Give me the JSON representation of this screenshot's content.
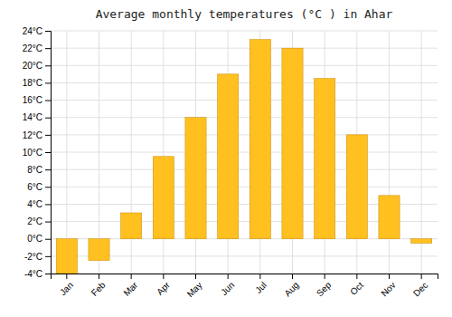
{
  "chart_data": {
    "type": "bar",
    "title": "Average monthly temperatures (°C ) in Ahar",
    "categories": [
      "Jan",
      "Feb",
      "Mar",
      "Apr",
      "May",
      "Jun",
      "Jul",
      "Aug",
      "Sep",
      "Oct",
      "Nov",
      "Dec"
    ],
    "values": [
      -4,
      -2.5,
      3,
      9.5,
      14,
      19,
      23,
      22,
      18.5,
      12,
      5,
      -0.5
    ],
    "color": "#FFC020",
    "ylim": [
      -4,
      24
    ],
    "yticks": [
      {
        "value": -4,
        "label": "-4°C"
      },
      {
        "value": -2,
        "label": "-2°C"
      },
      {
        "value": 0,
        "label": "0°C"
      },
      {
        "value": 2,
        "label": "2°C"
      },
      {
        "value": 4,
        "label": "4°C"
      },
      {
        "value": 6,
        "label": "6°C"
      },
      {
        "value": 8,
        "label": "8°C"
      },
      {
        "value": 10,
        "label": "10°C"
      },
      {
        "value": 12,
        "label": "12°C"
      },
      {
        "value": 14,
        "label": "14°C"
      },
      {
        "value": 16,
        "label": "16°C"
      },
      {
        "value": 18,
        "label": "18°C"
      },
      {
        "value": 20,
        "label": "20°C"
      },
      {
        "value": 22,
        "label": "22°C"
      },
      {
        "value": 24,
        "label": "24°C"
      }
    ],
    "grid": true
  }
}
